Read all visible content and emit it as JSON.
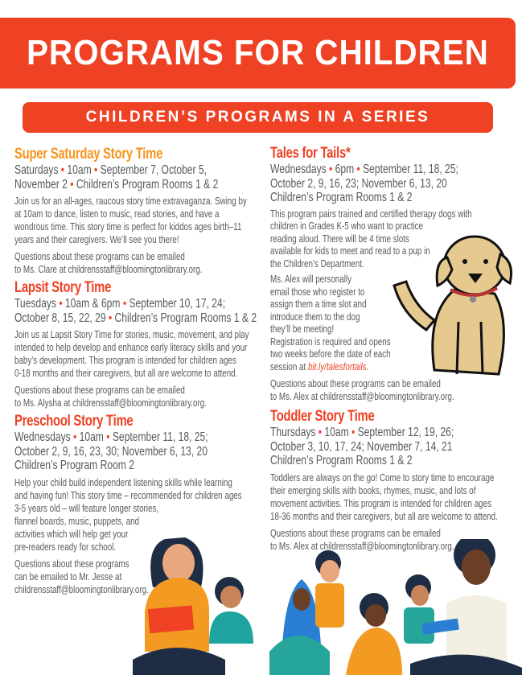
{
  "colors": {
    "brand": "#ef4123",
    "saturday": "#f7941d",
    "text": "#58595b"
  },
  "header": {
    "title": "PROGRAMS FOR CHILDREN"
  },
  "subheader": {
    "title": "CHILDREN’S PROGRAMS IN A SERIES"
  },
  "programs": [
    {
      "title": "Super Saturday Story Time",
      "color": "#f7941d",
      "schedule": [
        "Saturdays • 10am • September 7, October 5,",
        "November 2 • Children’s Program Rooms 1 & 2"
      ],
      "body": [
        "Join us for an all-ages, raucous story time extravaganza. Swing by",
        "at 10am to dance, listen to music, read stories, and have a",
        "wondrous time. This story time is perfect for kiddos ages birth–11",
        "years and their caregivers. We’ll see you there!"
      ],
      "questions": [
        "Questions about these programs can be emailed",
        "to Ms. Clare at childrensstaff@bloomingtonlibrary.org."
      ]
    },
    {
      "title": "Lapsit Story Time",
      "color": "#ef4123",
      "schedule": [
        "Tuesdays • 10am & 6pm • September 10, 17, 24;",
        "October 8, 15, 22, 29 • Children’s Program Rooms 1 & 2"
      ],
      "body": [
        "Join us at Lapsit Story Time for stories, music, movement, and play",
        "intended to help develop and enhance early literacy skills and your",
        "baby’s development. This program is intended for children ages",
        "0-18 months and their caregivers, but all are welcome to attend."
      ],
      "questions": [
        "Questions about these programs can be emailed",
        "to Ms. Alysha at childrensstaff@bloomingtonlibrary.org."
      ]
    },
    {
      "title": "Preschool Story Time",
      "color": "#ef4123",
      "schedule": [
        "Wednesdays • 10am • September 11, 18, 25;",
        "October 2, 9, 16, 23, 30; November 6, 13, 20",
        "Children’s Program Room 2"
      ],
      "body": [
        "Help your child build independent listening skills while learning",
        "and having fun! This story time – recommended for children ages",
        "3-5 years old – will feature longer stories,",
        "flannel boards, music, puppets, and",
        "activities which will help get your",
        "pre-readers ready for school."
      ],
      "questions": [
        "Questions about these programs",
        "can be emailed to Mr. Jesse at",
        "childrensstaff@bloomingtonlibrary.org."
      ]
    },
    {
      "title": "Tales for Tails*",
      "color": "#ef4123",
      "schedule": [
        "Wednesdays • 6pm • September 11, 18, 25;",
        "October 2, 9, 16, 23; November 6, 13, 20",
        "Children’s Program Rooms 1 & 2"
      ],
      "body": [
        "This program pairs trained and certified therapy dogs with",
        "children in Grades K-5 who want to practice",
        "reading aloud. There will be 4 time slots",
        "available for kids to meet and read to a pup in",
        "the Children’s Department."
      ],
      "body2": [
        "Ms. Alex will personally",
        "email those who register to",
        "assign them a time slot and",
        "introduce them to the dog",
        "they’ll be meeting!",
        "Registration is required and opens",
        "two weeks before the date of each"
      ],
      "session_prefix": "session at ",
      "link": "bit.ly/talesfortails",
      "session_suffix": ".",
      "questions": [
        "Questions about these programs can be emailed",
        "to Ms. Alex at childrensstaff@bloomingtonlibrary.org."
      ]
    },
    {
      "title": "Toddler Story Time",
      "color": "#ef4123",
      "schedule": [
        "Thursdays • 10am • September 12, 19, 26;",
        "October 3, 10, 17, 24; November 7, 14, 21",
        "Children’s Program Rooms 1 & 2"
      ],
      "body": [
        "Toddlers are always on the go! Come to story time to encourage",
        "their emerging skills with books, rhymes, music, and lots of",
        "movement activities. This program is intended for children ages",
        "18-36 months and their caregivers, but all are welcome to attend."
      ],
      "questions": [
        "Questions about these programs can be emailed",
        "to Ms. Alex at childrensstaff@bloomingtonlibrary.org."
      ]
    }
  ]
}
